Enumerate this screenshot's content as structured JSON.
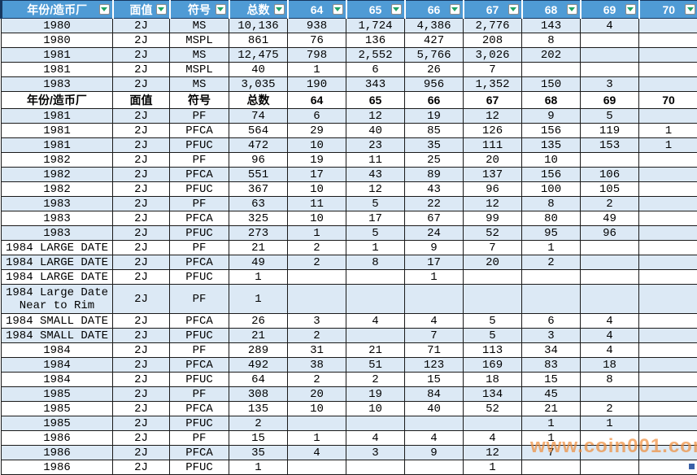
{
  "table": {
    "columns": [
      "年份/造币厂",
      "面值",
      "符号",
      "总数",
      "64",
      "65",
      "66",
      "67",
      "68",
      "69",
      "70"
    ],
    "repeat_header": [
      "年份/造币厂",
      "面值",
      "符号",
      "总数",
      "64",
      "65",
      "66",
      "67",
      "68",
      "69",
      "70"
    ],
    "section1_rows": [
      [
        "1980",
        "2J",
        "MS",
        "10,136",
        "938",
        "1,724",
        "4,386",
        "2,776",
        "143",
        "4",
        ""
      ],
      [
        "1980",
        "2J",
        "MSPL",
        "861",
        "76",
        "136",
        "427",
        "208",
        "8",
        "",
        ""
      ],
      [
        "1981",
        "2J",
        "MS",
        "12,475",
        "798",
        "2,552",
        "5,766",
        "3,026",
        "202",
        "",
        ""
      ],
      [
        "1981",
        "2J",
        "MSPL",
        "40",
        "1",
        "6",
        "26",
        "7",
        "",
        "",
        ""
      ],
      [
        "1983",
        "2J",
        "MS",
        "3,035",
        "190",
        "343",
        "956",
        "1,352",
        "150",
        "3",
        ""
      ]
    ],
    "section2_rows": [
      [
        "1981",
        "2J",
        "PF",
        "74",
        "6",
        "12",
        "19",
        "12",
        "9",
        "5",
        ""
      ],
      [
        "1981",
        "2J",
        "PFCA",
        "564",
        "29",
        "40",
        "85",
        "126",
        "156",
        "119",
        "1"
      ],
      [
        "1981",
        "2J",
        "PFUC",
        "472",
        "10",
        "23",
        "35",
        "111",
        "135",
        "153",
        "1"
      ],
      [
        "1982",
        "2J",
        "PF",
        "96",
        "19",
        "11",
        "25",
        "20",
        "10",
        "",
        ""
      ],
      [
        "1982",
        "2J",
        "PFCA",
        "551",
        "17",
        "43",
        "89",
        "137",
        "156",
        "106",
        ""
      ],
      [
        "1982",
        "2J",
        "PFUC",
        "367",
        "10",
        "12",
        "43",
        "96",
        "100",
        "105",
        ""
      ],
      [
        "1983",
        "2J",
        "PF",
        "63",
        "11",
        "5",
        "22",
        "12",
        "8",
        "2",
        ""
      ],
      [
        "1983",
        "2J",
        "PFCA",
        "325",
        "10",
        "17",
        "67",
        "99",
        "80",
        "49",
        ""
      ],
      [
        "1983",
        "2J",
        "PFUC",
        "273",
        "1",
        "5",
        "24",
        "52",
        "95",
        "96",
        ""
      ],
      [
        "1984 LARGE DATE",
        "2J",
        "PF",
        "21",
        "2",
        "1",
        "9",
        "7",
        "1",
        "",
        ""
      ],
      [
        "1984 LARGE DATE",
        "2J",
        "PFCA",
        "49",
        "2",
        "8",
        "17",
        "20",
        "2",
        "",
        ""
      ],
      [
        "1984 LARGE DATE",
        "2J",
        "PFUC",
        "1",
        "",
        "",
        "1",
        "",
        "",
        "",
        ""
      ],
      [
        "1984 Large Date Near to Rim",
        "2J",
        "PF",
        "1",
        "",
        "",
        "",
        "",
        "",
        "",
        ""
      ],
      [
        "1984 SMALL DATE",
        "2J",
        "PFCA",
        "26",
        "3",
        "4",
        "4",
        "5",
        "6",
        "4",
        ""
      ],
      [
        "1984 SMALL DATE",
        "2J",
        "PFUC",
        "21",
        "2",
        "",
        "7",
        "5",
        "3",
        "4",
        ""
      ],
      [
        "1984",
        "2J",
        "PF",
        "289",
        "31",
        "21",
        "71",
        "113",
        "34",
        "4",
        ""
      ],
      [
        "1984",
        "2J",
        "PFCA",
        "492",
        "38",
        "51",
        "123",
        "169",
        "83",
        "18",
        ""
      ],
      [
        "1984",
        "2J",
        "PFUC",
        "64",
        "2",
        "2",
        "15",
        "18",
        "15",
        "8",
        ""
      ],
      [
        "1985",
        "2J",
        "PF",
        "308",
        "20",
        "19",
        "84",
        "134",
        "45",
        "",
        ""
      ],
      [
        "1985",
        "2J",
        "PFCA",
        "135",
        "10",
        "10",
        "40",
        "52",
        "21",
        "2",
        ""
      ],
      [
        "1985",
        "2J",
        "PFUC",
        "2",
        "",
        "",
        "",
        "",
        "1",
        "1",
        ""
      ],
      [
        "1986",
        "2J",
        "PF",
        "15",
        "1",
        "4",
        "4",
        "4",
        "1",
        "",
        ""
      ],
      [
        "1986",
        "2J",
        "PFCA",
        "35",
        "4",
        "3",
        "9",
        "12",
        "7",
        "",
        ""
      ],
      [
        "1986",
        "2J",
        "PFUC",
        "1",
        "",
        "",
        "",
        "1",
        "",
        "",
        ""
      ]
    ],
    "tall_row_index": 12
  },
  "watermark": {
    "text": "www.coin001.com"
  },
  "colors": {
    "header_bg": "#4F9BD5",
    "header_text": "#ffffff",
    "row_alt_bg": "#DCE9F5",
    "border": "#1a1a1a",
    "filter_arrow_green": "#21A366",
    "watermark_orange": "#EE8F3E",
    "fill_handle_blue": "#3A60A8"
  }
}
